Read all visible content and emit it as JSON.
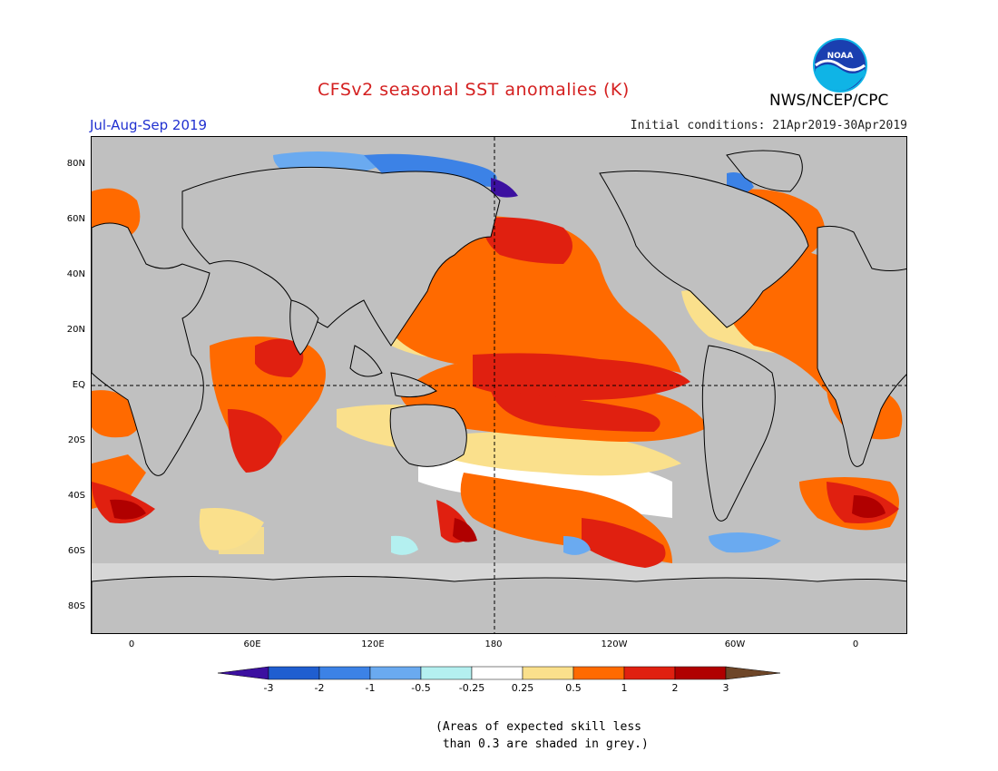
{
  "title": "CFSv2 seasonal SST anomalies (K)",
  "org": "NWS/NCEP/CPC",
  "logo_text": "NOAA",
  "season": "Jul-Aug-Sep 2019",
  "init": "Initial conditions: 21Apr2019-30Apr2019",
  "colors": {
    "title": "#d42020",
    "season": "#2030d0",
    "land": "#c0c0c0",
    "grid": "#000000"
  },
  "lat_labels": [
    "80N",
    "60N",
    "40N",
    "20N",
    "EQ",
    "20S",
    "40S",
    "60S",
    "80S"
  ],
  "lon_labels": [
    "0",
    "60E",
    "120E",
    "180",
    "120W",
    "60W",
    "0"
  ],
  "colorbar": {
    "levels": [
      "-3",
      "-2",
      "-1",
      "-0.5",
      "-0.25",
      "0.25",
      "0.5",
      "1",
      "2",
      "3"
    ],
    "colors": [
      "#3c10a0",
      "#1f5ed0",
      "#3c82e6",
      "#6aaaf0",
      "#b4f0f0",
      "#ffffff",
      "#fae08c",
      "#ff6a00",
      "#e02010",
      "#b00000",
      "#6e4628"
    ]
  },
  "note_line1": "(Areas of expected skill less",
  "note_line2": " than 0.3 are shaded in grey.)"
}
